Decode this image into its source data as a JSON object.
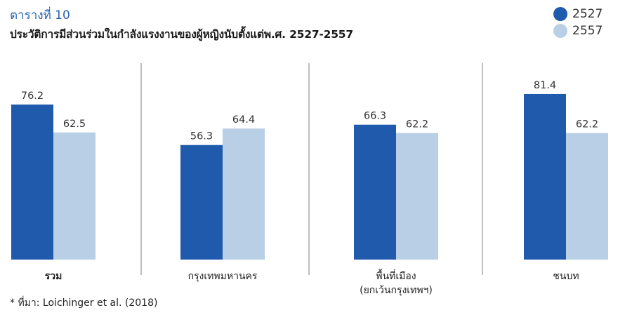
{
  "header": {
    "table_label": "ตารางที่ 10",
    "title": "ประวัติการมีส่วนร่วมในกำลังแรงงานของผู้หญิงนับตั้งแต่พ.ศ. 2527-2557"
  },
  "source": "* ที่มา: Loichinger et al. (2018)",
  "colors": {
    "series_2527": "#1f5aad",
    "series_2557": "#b9cfe6",
    "divider": "#a8a8a8"
  },
  "chart_data": {
    "type": "bar",
    "title": "ประวัติการมีส่วนร่วมในกำลังแรงงานของผู้หญิงนับตั้งแต่พ.ศ. 2527-2557",
    "categories": [
      {
        "lines": [
          "รวม"
        ],
        "bold": true
      },
      {
        "lines": [
          "กรุงเทพมหานคร"
        ],
        "bold": false
      },
      {
        "lines": [
          "พื้นที่เมือง",
          "(ยกเว้นกรุงเทพฯ)"
        ],
        "bold": false
      },
      {
        "lines": [
          "ชนบท"
        ],
        "bold": false
      }
    ],
    "series": [
      {
        "name": "2527",
        "values": [
          76.2,
          56.3,
          66.3,
          81.4
        ]
      },
      {
        "name": "2557",
        "values": [
          62.5,
          64.4,
          62.2,
          62.2
        ]
      }
    ],
    "ylim": [
      0,
      100
    ],
    "legend": "top-right",
    "grid": false
  }
}
